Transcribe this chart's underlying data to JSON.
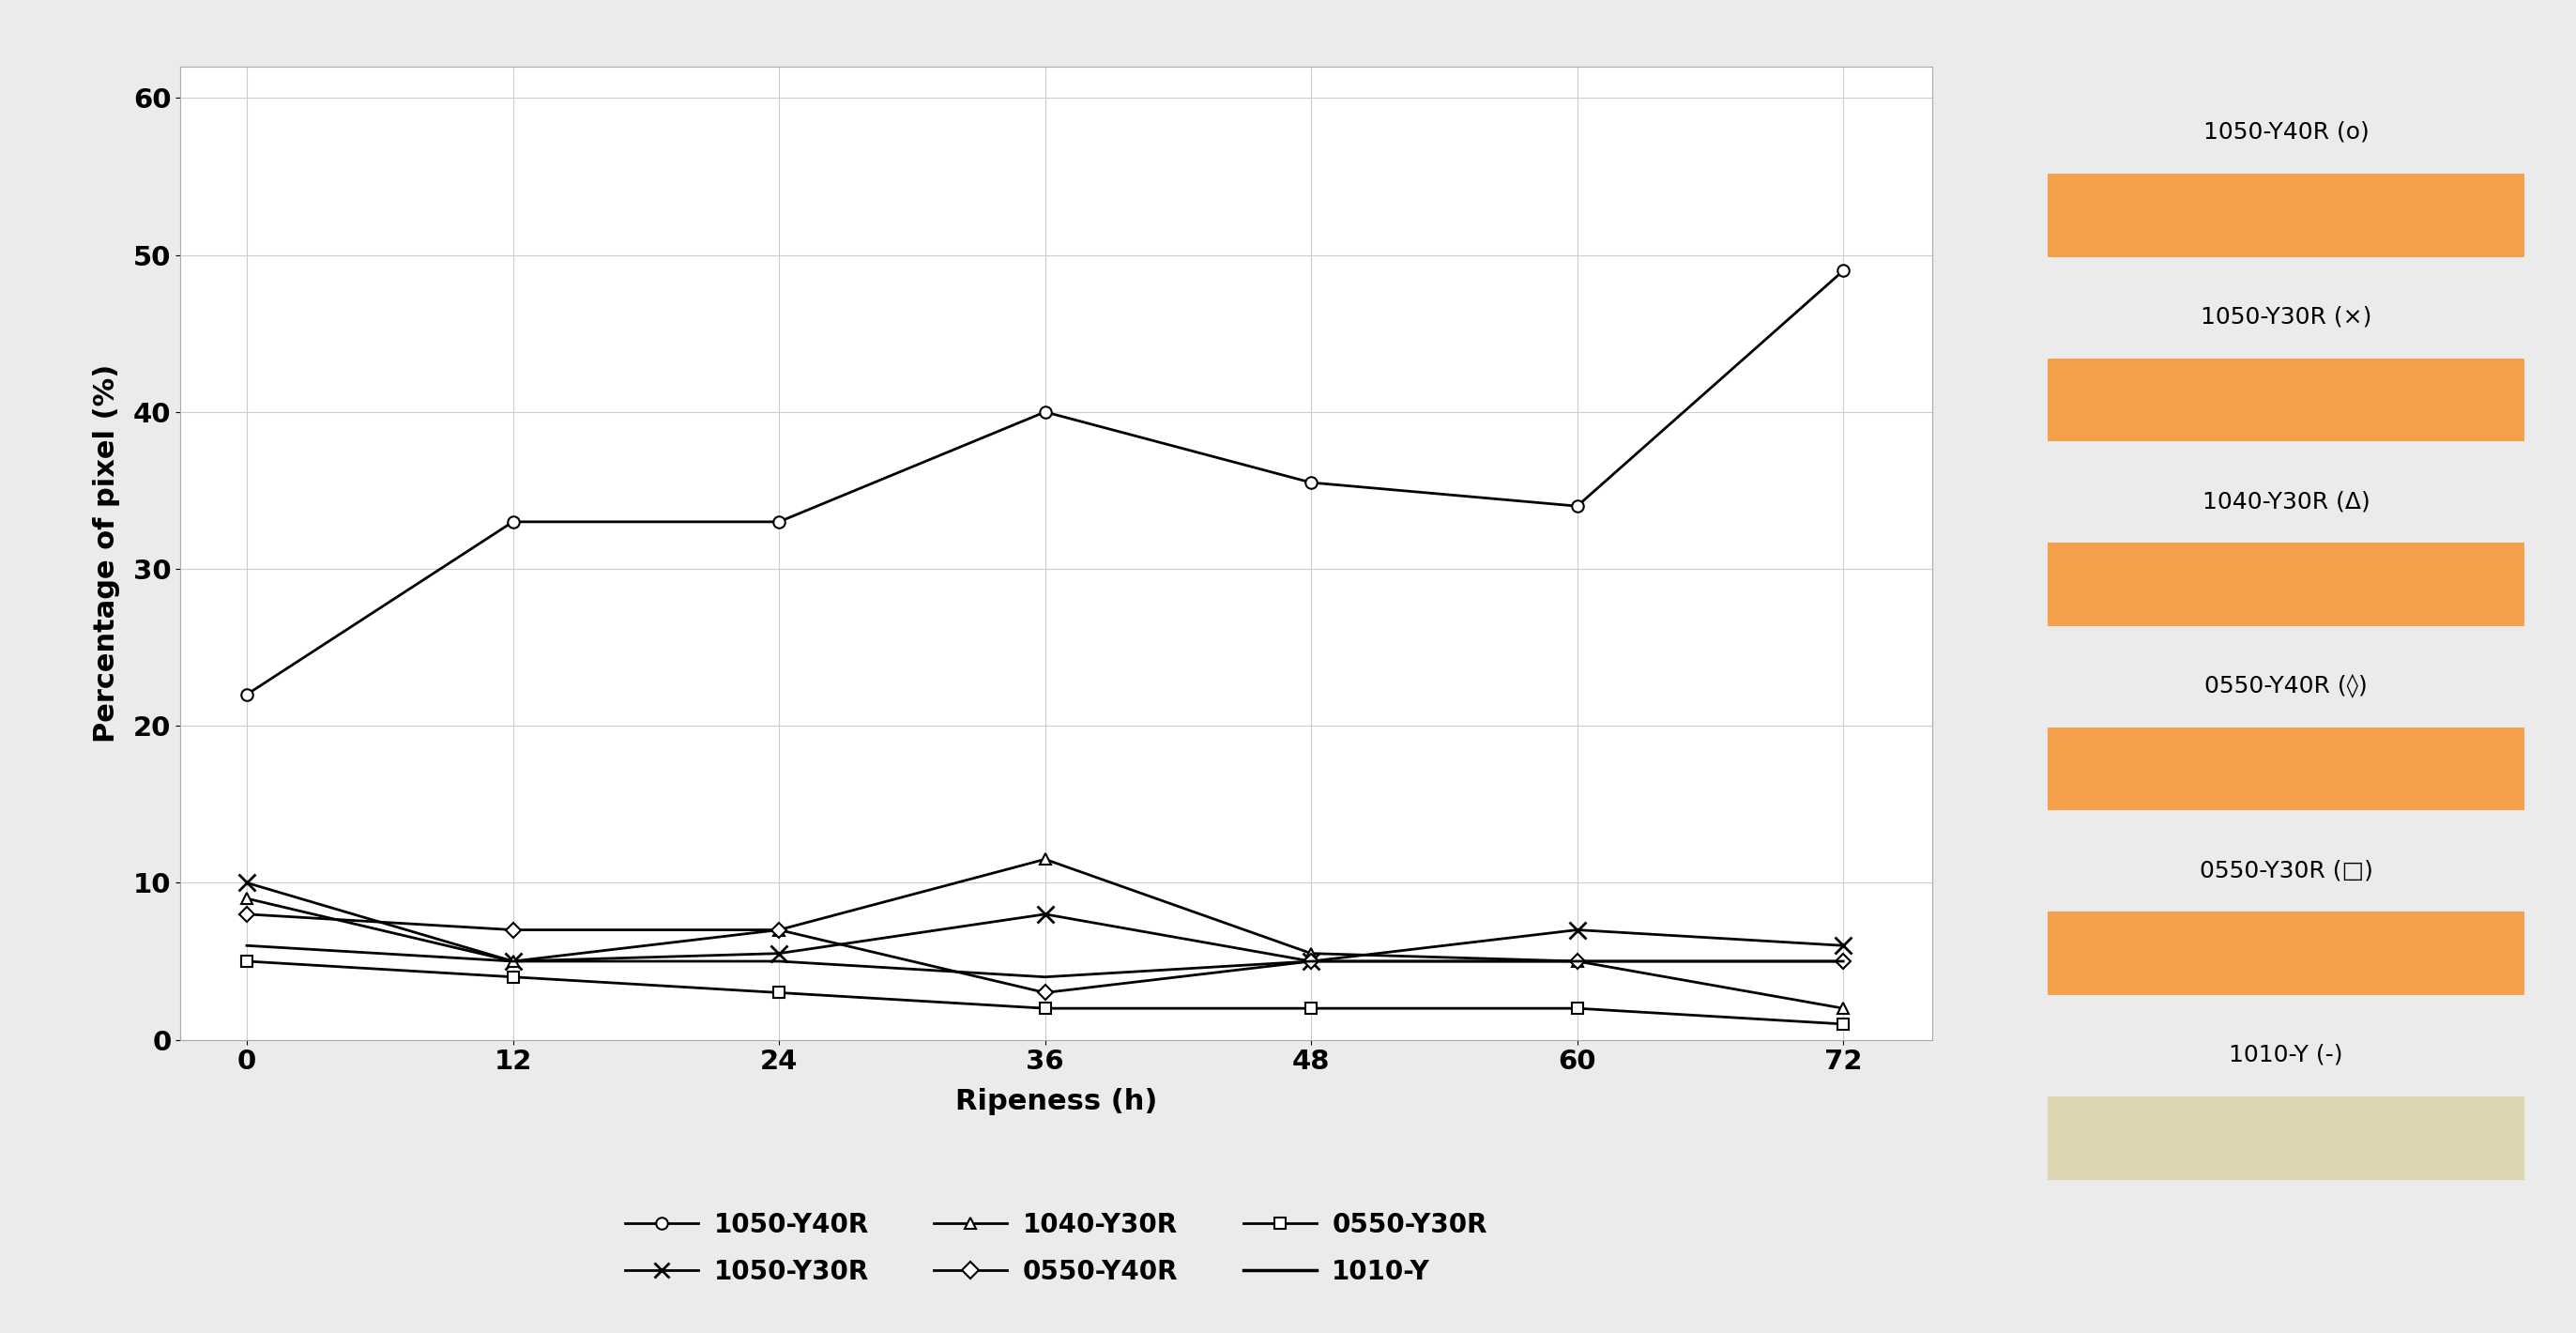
{
  "x": [
    0,
    12,
    24,
    36,
    48,
    60,
    72
  ],
  "series_order": [
    "1050-Y40R",
    "1050-Y30R",
    "1040-Y30R",
    "0550-Y40R",
    "0550-Y30R",
    "1010-Y"
  ],
  "series": {
    "1050-Y40R": {
      "values": [
        22.0,
        33.0,
        33.0,
        40.0,
        35.5,
        34.0,
        49.0
      ],
      "marker": "o"
    },
    "1050-Y30R": {
      "values": [
        10.0,
        5.0,
        5.5,
        8.0,
        5.0,
        7.0,
        6.0
      ],
      "marker": "x"
    },
    "1040-Y30R": {
      "values": [
        9.0,
        5.0,
        7.0,
        11.5,
        5.5,
        5.0,
        2.0
      ],
      "marker": "^"
    },
    "0550-Y40R": {
      "values": [
        8.0,
        7.0,
        7.0,
        3.0,
        5.0,
        5.0,
        5.0
      ],
      "marker": "D"
    },
    "0550-Y30R": {
      "values": [
        5.0,
        4.0,
        3.0,
        2.0,
        2.0,
        2.0,
        1.0
      ],
      "marker": "s"
    },
    "1010-Y": {
      "values": [
        6.0,
        5.0,
        5.0,
        4.0,
        5.0,
        5.0,
        5.0
      ],
      "marker": "none"
    }
  },
  "xlabel": "Ripeness (h)",
  "ylabel": "Percentage of pixel (%)",
  "xlim": [
    -3,
    76
  ],
  "ylim": [
    0,
    62
  ],
  "yticks": [
    0,
    10,
    20,
    30,
    40,
    50,
    60
  ],
  "xticks": [
    0,
    12,
    24,
    36,
    48,
    60,
    72
  ],
  "background_color": "#ebebeb",
  "plot_bg_color": "#ffffff",
  "grid_color": "#cccccc",
  "right_legend": [
    {
      "label": "1050-Y40R (o)",
      "box_color": "#f5a04a"
    },
    {
      "label": "1050-Y30R (×)",
      "box_color": "#f5a04a"
    },
    {
      "label": "1040-Y30R (Δ)",
      "box_color": "#f5a04a"
    },
    {
      "label": "0550-Y40R (◊)",
      "box_color": "#f5a04a"
    },
    {
      "label": "0550-Y30R (□)",
      "box_color": "#f5a04a"
    },
    {
      "label": "1010-Y (-)",
      "box_color": "#ddd5b0"
    }
  ],
  "bottom_legend": [
    {
      "label": "1050-Y40R",
      "marker": "o"
    },
    {
      "label": "1050-Y30R",
      "marker": "x"
    },
    {
      "label": "1040-Y30R",
      "marker": "^"
    },
    {
      "label": "0550-Y40R",
      "marker": "D"
    },
    {
      "label": "0550-Y30R",
      "marker": "s"
    },
    {
      "label": "1010-Y",
      "marker": "none"
    }
  ]
}
